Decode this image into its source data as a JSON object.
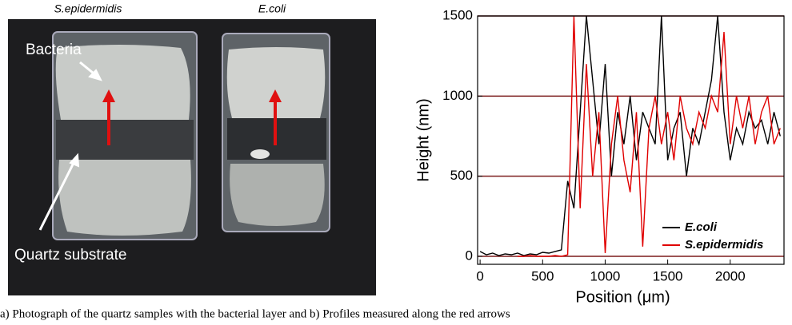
{
  "photo": {
    "labels": [
      "S.epidermidis",
      "E.coli"
    ],
    "annotations": [
      "Bacteria",
      "Quartz substrate"
    ]
  },
  "chart_data": {
    "type": "line",
    "y_label": "Height (nm)",
    "x_label": "Position (μm)",
    "x": [
      0,
      50,
      100,
      150,
      200,
      250,
      300,
      350,
      400,
      450,
      500,
      550,
      600,
      650,
      700,
      750,
      800,
      850,
      900,
      950,
      1000,
      1050,
      1100,
      1150,
      1200,
      1250,
      1300,
      1350,
      1400,
      1450,
      1500,
      1550,
      1600,
      1650,
      1700,
      1750,
      1800,
      1850,
      1900,
      1950,
      2000,
      2050,
      2100,
      2150,
      2200,
      2250,
      2300,
      2350,
      2400
    ],
    "series": [
      {
        "name": "E.coli",
        "color": "#000000",
        "values": [
          30,
          10,
          20,
          5,
          15,
          10,
          20,
          5,
          15,
          10,
          25,
          20,
          30,
          40,
          470,
          300,
          900,
          1500,
          1100,
          700,
          1200,
          500,
          900,
          700,
          1000,
          600,
          900,
          800,
          700,
          1500,
          600,
          800,
          900,
          500,
          800,
          700,
          900,
          1100,
          1500,
          900,
          600,
          800,
          700,
          900,
          800,
          850,
          700,
          900,
          750
        ]
      },
      {
        "name": "S.epidermidis",
        "color": "#e00000",
        "values": [
          null,
          null,
          null,
          null,
          null,
          null,
          0,
          0,
          5,
          0,
          0,
          0,
          5,
          0,
          10,
          1500,
          300,
          1200,
          500,
          900,
          20,
          700,
          1000,
          600,
          400,
          900,
          60,
          800,
          1000,
          700,
          900,
          600,
          1000,
          800,
          700,
          900,
          800,
          1000,
          900,
          1400,
          700,
          1000,
          800,
          1000,
          700,
          900,
          1000,
          700,
          800
        ]
      }
    ],
    "xlim": [
      -20,
      2430
    ],
    "ylim": [
      -50,
      1500
    ],
    "xticks": [
      0,
      500,
      1000,
      1500,
      2000
    ],
    "yticks": [
      0,
      500,
      1000,
      1500
    ],
    "grid": true,
    "grid_color": "#7b1c1c",
    "legend": "lower right"
  },
  "caption": "a) Photograph of the quartz samples with the bacterial layer and b) Profiles measured along the red arrows"
}
